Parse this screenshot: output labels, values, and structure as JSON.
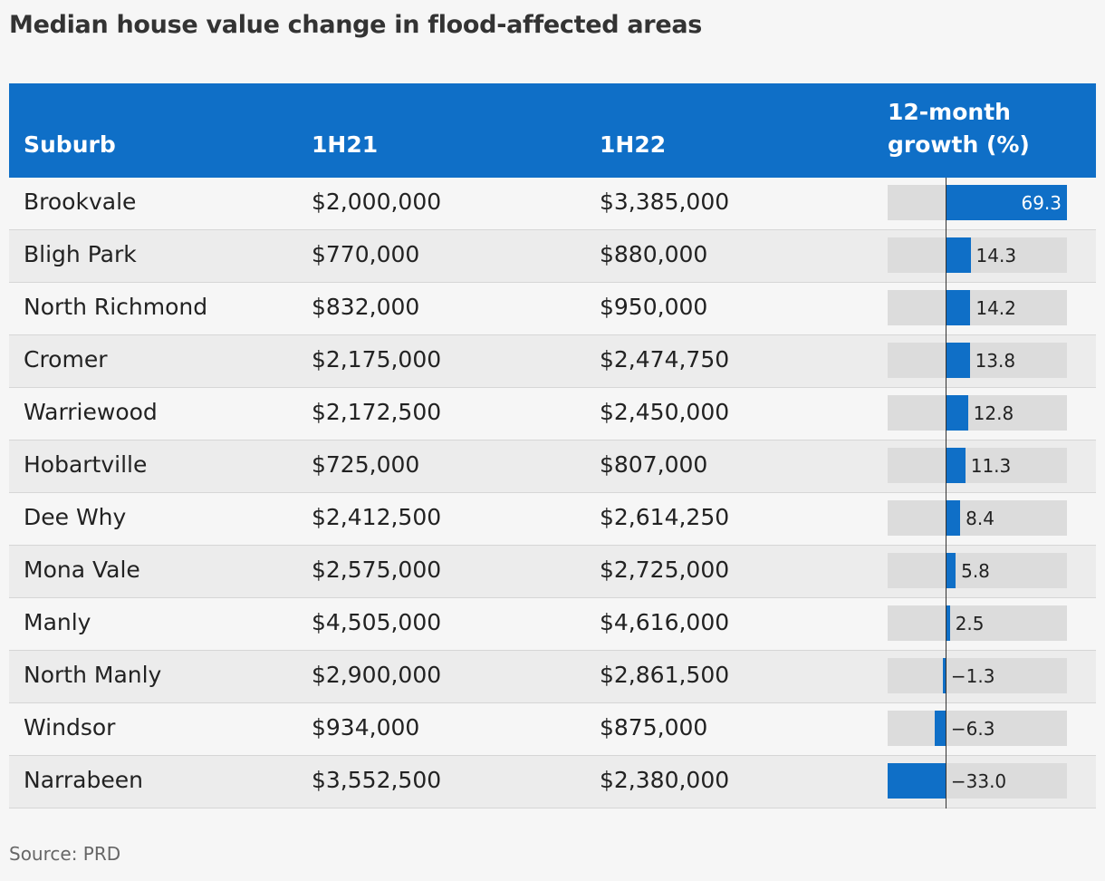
{
  "title": "Median house value change in flood-affected areas",
  "source": "Source: PRD",
  "colors": {
    "header": "#0f6fc7",
    "bar": "#0f6fc7",
    "track": "#dcdcdc"
  },
  "columns": [
    "Suburb",
    "1H21",
    "1H22",
    "12-month growth (%)"
  ],
  "chart_data": {
    "type": "table",
    "title": "Median house value change in flood-affected areas",
    "columns": [
      "Suburb",
      "1H21",
      "1H22",
      "12-month growth (%)"
    ],
    "growth_range": [
      -33.0,
      69.3
    ],
    "rows": [
      {
        "suburb": "Brookvale",
        "h21": "$2,000,000",
        "h22": "$3,385,000",
        "growth": 69.3,
        "label": "69.3"
      },
      {
        "suburb": "Bligh Park",
        "h21": "$770,000",
        "h22": "$880,000",
        "growth": 14.3,
        "label": "14.3"
      },
      {
        "suburb": "North Richmond",
        "h21": "$832,000",
        "h22": "$950,000",
        "growth": 14.2,
        "label": "14.2"
      },
      {
        "suburb": "Cromer",
        "h21": "$2,175,000",
        "h22": "$2,474,750",
        "growth": 13.8,
        "label": "13.8"
      },
      {
        "suburb": "Warriewood",
        "h21": "$2,172,500",
        "h22": "$2,450,000",
        "growth": 12.8,
        "label": "12.8"
      },
      {
        "suburb": "Hobartville",
        "h21": "$725,000",
        "h22": "$807,000",
        "growth": 11.3,
        "label": "11.3"
      },
      {
        "suburb": "Dee Why",
        "h21": "$2,412,500",
        "h22": "$2,614,250",
        "growth": 8.4,
        "label": "8.4"
      },
      {
        "suburb": "Mona Vale",
        "h21": "$2,575,000",
        "h22": "$2,725,000",
        "growth": 5.8,
        "label": "5.8"
      },
      {
        "suburb": "Manly",
        "h21": "$4,505,000",
        "h22": "$4,616,000",
        "growth": 2.5,
        "label": "2.5"
      },
      {
        "suburb": "North Manly",
        "h21": "$2,900,000",
        "h22": "$2,861,500",
        "growth": -1.3,
        "label": "−1.3"
      },
      {
        "suburb": "Windsor",
        "h21": "$934,000",
        "h22": "$875,000",
        "growth": -6.3,
        "label": "−6.3"
      },
      {
        "suburb": "Narrabeen",
        "h21": "$3,552,500",
        "h22": "$2,380,000",
        "growth": -33.0,
        "label": "−33.0"
      }
    ]
  }
}
